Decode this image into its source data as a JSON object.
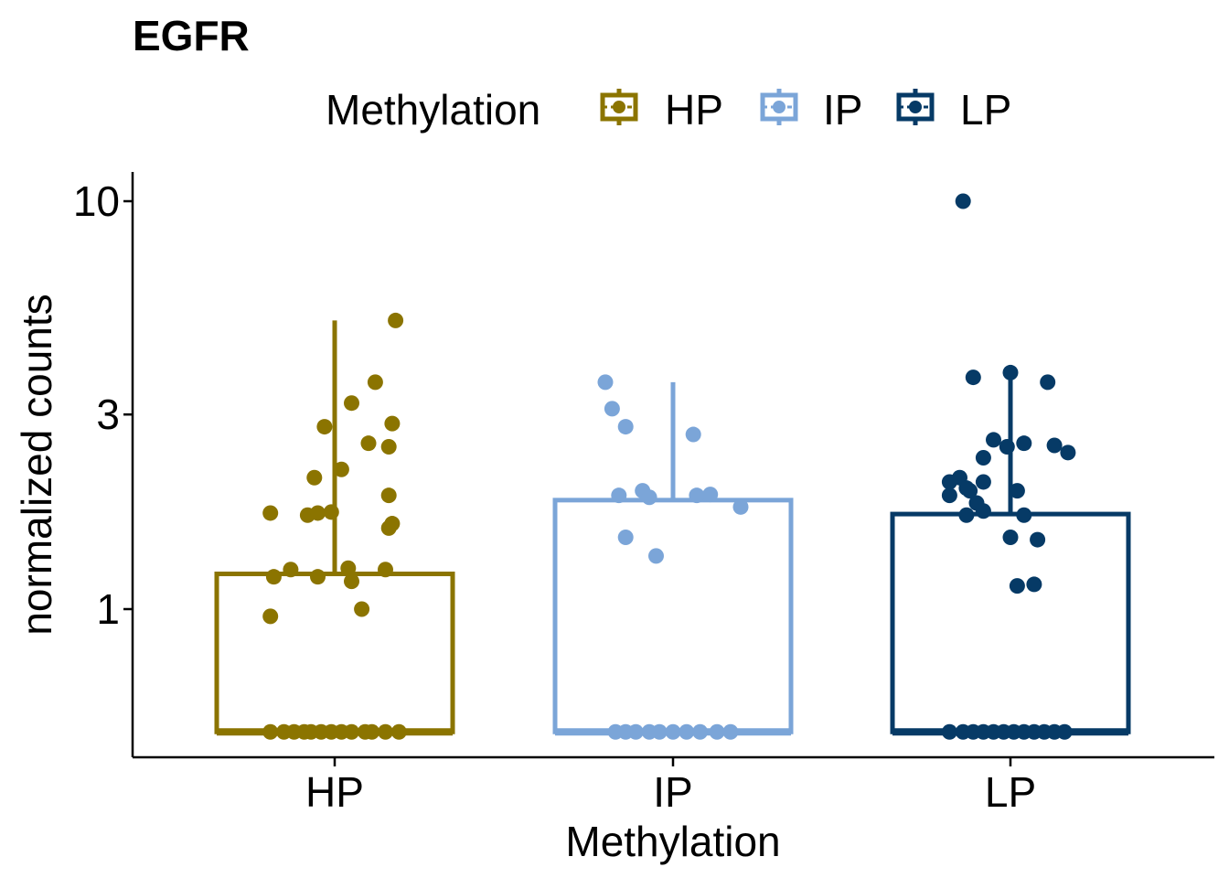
{
  "chart_data": {
    "type": "box",
    "title": "EGFR",
    "xlabel": "Methylation",
    "ylabel": "normalized counts",
    "y_scale": "log10",
    "y_ticks": [
      1,
      3,
      10
    ],
    "y_tick_labels": [
      "1",
      "3",
      "10"
    ],
    "ylim": [
      0.5,
      11.7
    ],
    "categories": [
      "HP",
      "IP",
      "LP"
    ],
    "legend": {
      "title": "Methylation",
      "position": "top",
      "entries": [
        "HP",
        "IP",
        "LP"
      ]
    },
    "colors": {
      "HP": "#8B7400",
      "IP": "#7BA5D8",
      "LP": "#063A66"
    },
    "boxes": [
      {
        "name": "HP",
        "q1": 0.5,
        "median": 0.5,
        "q3": 1.22,
        "whisker_low": 0.5,
        "whisker_high": 5.1
      },
      {
        "name": "IP",
        "q1": 0.5,
        "median": 0.5,
        "q3": 1.85,
        "whisker_low": 0.5,
        "whisker_high": 3.6
      },
      {
        "name": "LP",
        "q1": 0.5,
        "median": 0.5,
        "q3": 1.71,
        "whisker_low": 0.5,
        "whisker_high": 3.8
      }
    ],
    "points": {
      "HP": [
        {
          "x": 0.18,
          "y": 5.1
        },
        {
          "x": 0.12,
          "y": 3.6
        },
        {
          "x": 0.05,
          "y": 3.2
        },
        {
          "x": -0.03,
          "y": 2.8
        },
        {
          "x": 0.17,
          "y": 2.85
        },
        {
          "x": 0.1,
          "y": 2.55
        },
        {
          "x": 0.16,
          "y": 2.5
        },
        {
          "x": 0.02,
          "y": 2.2
        },
        {
          "x": -0.06,
          "y": 2.1
        },
        {
          "x": 0.16,
          "y": 1.9
        },
        {
          "x": -0.19,
          "y": 1.72
        },
        {
          "x": -0.08,
          "y": 1.7
        },
        {
          "x": -0.05,
          "y": 1.72
        },
        {
          "x": -0.01,
          "y": 1.73
        },
        {
          "x": 0.17,
          "y": 1.62
        },
        {
          "x": 0.16,
          "y": 1.58
        },
        {
          "x": -0.13,
          "y": 1.25
        },
        {
          "x": -0.18,
          "y": 1.2
        },
        {
          "x": -0.05,
          "y": 1.2
        },
        {
          "x": 0.04,
          "y": 1.26
        },
        {
          "x": 0.15,
          "y": 1.25
        },
        {
          "x": 0.05,
          "y": 1.17
        },
        {
          "x": 0.08,
          "y": 1.0
        },
        {
          "x": -0.19,
          "y": 0.96
        },
        {
          "x": -0.19,
          "y": 0.5
        },
        {
          "x": -0.15,
          "y": 0.5
        },
        {
          "x": -0.12,
          "y": 0.5
        },
        {
          "x": -0.09,
          "y": 0.5
        },
        {
          "x": -0.07,
          "y": 0.5
        },
        {
          "x": -0.04,
          "y": 0.5
        },
        {
          "x": -0.01,
          "y": 0.5
        },
        {
          "x": 0.02,
          "y": 0.5
        },
        {
          "x": 0.05,
          "y": 0.5
        },
        {
          "x": 0.09,
          "y": 0.5
        },
        {
          "x": 0.11,
          "y": 0.5
        },
        {
          "x": 0.15,
          "y": 0.5
        },
        {
          "x": 0.19,
          "y": 0.5
        }
      ],
      "IP": [
        {
          "x": -0.2,
          "y": 3.6
        },
        {
          "x": -0.18,
          "y": 3.1
        },
        {
          "x": -0.14,
          "y": 2.8
        },
        {
          "x": 0.06,
          "y": 2.68
        },
        {
          "x": -0.09,
          "y": 1.95
        },
        {
          "x": -0.16,
          "y": 1.9
        },
        {
          "x": -0.07,
          "y": 1.88
        },
        {
          "x": 0.07,
          "y": 1.9
        },
        {
          "x": 0.11,
          "y": 1.91
        },
        {
          "x": 0.2,
          "y": 1.78
        },
        {
          "x": -0.14,
          "y": 1.5
        },
        {
          "x": -0.05,
          "y": 1.35
        },
        {
          "x": -0.17,
          "y": 0.5
        },
        {
          "x": -0.14,
          "y": 0.5
        },
        {
          "x": -0.11,
          "y": 0.5
        },
        {
          "x": -0.07,
          "y": 0.5
        },
        {
          "x": -0.04,
          "y": 0.5
        },
        {
          "x": 0.0,
          "y": 0.5
        },
        {
          "x": 0.04,
          "y": 0.5
        },
        {
          "x": 0.08,
          "y": 0.5
        },
        {
          "x": 0.13,
          "y": 0.5
        },
        {
          "x": 0.17,
          "y": 0.5
        }
      ],
      "LP": [
        {
          "x": -0.14,
          "y": 10.0
        },
        {
          "x": -0.11,
          "y": 3.7
        },
        {
          "x": 0.0,
          "y": 3.8
        },
        {
          "x": 0.11,
          "y": 3.6
        },
        {
          "x": -0.05,
          "y": 2.6
        },
        {
          "x": -0.01,
          "y": 2.5
        },
        {
          "x": 0.04,
          "y": 2.55
        },
        {
          "x": 0.13,
          "y": 2.52
        },
        {
          "x": 0.17,
          "y": 2.42
        },
        {
          "x": -0.08,
          "y": 2.35
        },
        {
          "x": -0.08,
          "y": 2.05
        },
        {
          "x": -0.15,
          "y": 2.1
        },
        {
          "x": -0.18,
          "y": 2.05
        },
        {
          "x": -0.13,
          "y": 1.98
        },
        {
          "x": -0.12,
          "y": 1.95
        },
        {
          "x": -0.18,
          "y": 1.9
        },
        {
          "x": -0.1,
          "y": 1.82
        },
        {
          "x": 0.02,
          "y": 1.95
        },
        {
          "x": -0.08,
          "y": 1.74
        },
        {
          "x": 0.04,
          "y": 1.7
        },
        {
          "x": -0.13,
          "y": 1.7
        },
        {
          "x": 0.0,
          "y": 1.5
        },
        {
          "x": 0.08,
          "y": 1.48
        },
        {
          "x": 0.07,
          "y": 1.15
        },
        {
          "x": 0.02,
          "y": 1.14
        },
        {
          "x": -0.18,
          "y": 0.5
        },
        {
          "x": -0.14,
          "y": 0.5
        },
        {
          "x": -0.11,
          "y": 0.5
        },
        {
          "x": -0.08,
          "y": 0.5
        },
        {
          "x": -0.05,
          "y": 0.5
        },
        {
          "x": -0.02,
          "y": 0.5
        },
        {
          "x": 0.01,
          "y": 0.5
        },
        {
          "x": 0.04,
          "y": 0.5
        },
        {
          "x": 0.07,
          "y": 0.5
        },
        {
          "x": 0.1,
          "y": 0.5
        },
        {
          "x": 0.13,
          "y": 0.5
        },
        {
          "x": 0.16,
          "y": 0.5
        }
      ]
    }
  }
}
